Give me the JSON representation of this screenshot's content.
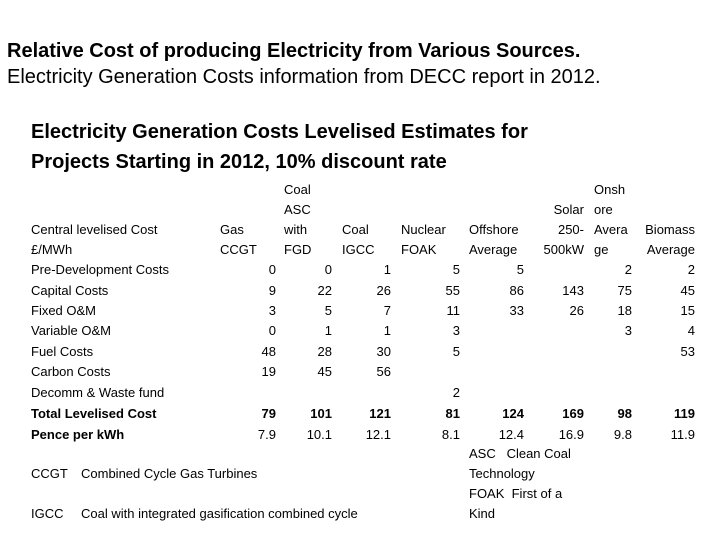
{
  "title": {
    "line1": "Relative Cost of producing Electricity from Various Sources.",
    "line2": "Electricity Generation Costs information from DECC report in 2012."
  },
  "subtitle": {
    "line1": "Electricity Generation Costs Levelised Estimates for",
    "line2": "Projects Starting in 2012, 10% discount rate"
  },
  "table": {
    "row_header_lines": [
      "Central levelised Cost",
      "£/MWh"
    ],
    "columns": [
      {
        "lines": [
          "Gas",
          "CCGT"
        ]
      },
      {
        "lines": [
          "Coal",
          "ASC",
          "with",
          "FGD"
        ]
      },
      {
        "lines": [
          "Coal",
          "IGCC"
        ]
      },
      {
        "lines": [
          "Nuclear",
          "FOAK"
        ]
      },
      {
        "lines": [
          "Offshore",
          "Average"
        ]
      },
      {
        "lines": [
          "Solar",
          "250-",
          "500kW"
        ]
      },
      {
        "lines": [
          "Onsh",
          "ore",
          "Avera",
          "ge"
        ]
      },
      {
        "lines": [
          "Biomass",
          "Average"
        ]
      }
    ],
    "rows": [
      {
        "label": "Pre-Development Costs",
        "values": [
          "0",
          "0",
          "1",
          "5",
          "5",
          "",
          "2",
          "2"
        ]
      },
      {
        "label": "Capital Costs",
        "values": [
          "9",
          "22",
          "26",
          "55",
          "86",
          "143",
          "75",
          "45"
        ]
      },
      {
        "label": "Fixed O&M",
        "values": [
          "3",
          "5",
          "7",
          "11",
          "33",
          "26",
          "18",
          "15"
        ]
      },
      {
        "label": "Variable O&M",
        "values": [
          "0",
          "1",
          "1",
          "3",
          "",
          "",
          "3",
          "4"
        ]
      },
      {
        "label": "Fuel Costs",
        "values": [
          "48",
          "28",
          "30",
          "5",
          "",
          "",
          "",
          "53"
        ]
      },
      {
        "label": "Carbon Costs",
        "values": [
          "19",
          "45",
          "56",
          "",
          "",
          "",
          "",
          ""
        ]
      },
      {
        "label": "Decomm & Waste fund",
        "values": [
          "",
          "",
          "",
          "2",
          "",
          "",
          "",
          ""
        ]
      },
      {
        "label": "Total Levelised Cost",
        "bold": true,
        "values": [
          "79",
          "101",
          "121",
          "81",
          "124",
          "169",
          "98",
          "119"
        ]
      },
      {
        "label": "Pence per kWh",
        "bold": true,
        "values": [
          "7.9",
          "10.1",
          "12.1",
          "8.1",
          "12.4",
          "16.9",
          "9.8",
          "11.9"
        ]
      }
    ]
  },
  "notes": {
    "ccgt_abbr": "CCGT",
    "ccgt_text": "Combined Cycle Gas Turbines",
    "igcc_abbr": "IGCC",
    "igcc_text": "Coal with integrated gasification combined cycle",
    "asc_lines": [
      "ASC   Clean Coal",
      "Technology",
      "FOAK  First of a",
      "Kind"
    ]
  }
}
